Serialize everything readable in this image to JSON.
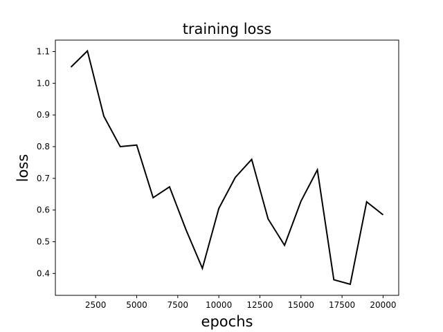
{
  "chart_data": {
    "type": "line",
    "title": "training loss",
    "xlabel": "epochs",
    "ylabel": "loss",
    "xlim": [
      50,
      20950
    ],
    "ylim": [
      0.331,
      1.136
    ],
    "xticks": [
      2500,
      5000,
      7500,
      10000,
      12500,
      15000,
      17500,
      20000
    ],
    "yticks": [
      0.4,
      0.5,
      0.6,
      0.7,
      0.8,
      0.9,
      1.0,
      1.1
    ],
    "xtick_labels": [
      "2500",
      "5000",
      "7500",
      "10000",
      "12500",
      "15000",
      "17500",
      "20000"
    ],
    "ytick_labels": [
      "0.4",
      "0.5",
      "0.6",
      "0.7",
      "0.8",
      "0.9",
      "1.0",
      "1.1"
    ],
    "grid": false,
    "series": [
      {
        "color": "#000000",
        "x": [
          1000,
          2000,
          3000,
          4000,
          5000,
          6000,
          7000,
          8000,
          9000,
          10000,
          11000,
          12000,
          13000,
          14000,
          15000,
          16000,
          17000,
          18000,
          19000,
          20000
        ],
        "y": [
          1.051,
          1.102,
          0.896,
          0.8,
          0.805,
          0.639,
          0.673,
          0.538,
          0.416,
          0.605,
          0.703,
          0.76,
          0.572,
          0.489,
          0.628,
          0.727,
          0.38,
          0.366,
          0.626,
          0.585
        ]
      }
    ]
  }
}
